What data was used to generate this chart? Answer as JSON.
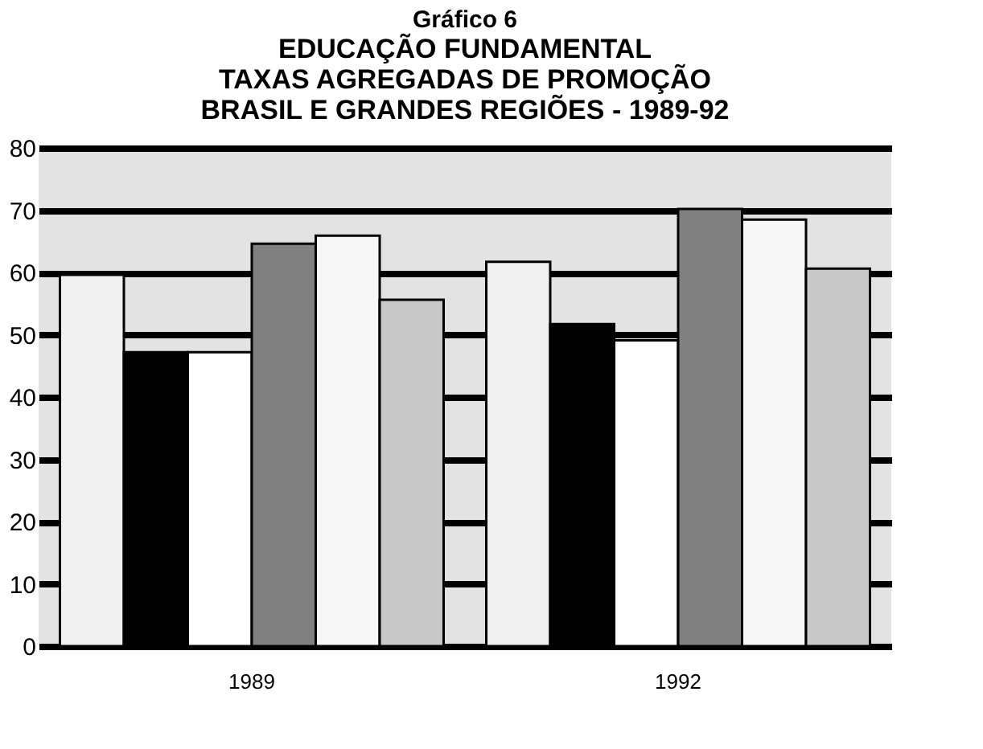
{
  "chart_data": {
    "type": "bar",
    "title": "Gráfico 6",
    "subtitle": [
      "EDUCAÇÃO FUNDAMENTAL",
      "TAXAS AGREGADAS DE PROMOÇÃO",
      "BRASIL E GRANDES REGIÕES - 1989-92"
    ],
    "categories": [
      "1989",
      "1992"
    ],
    "series": [
      {
        "color": "#f0f0f0",
        "values": [
          59.6,
          61.7
        ]
      },
      {
        "color": "#000000",
        "values": [
          47.2,
          51.7
        ]
      },
      {
        "color": "#ffffff",
        "values": [
          47.2,
          49.1
        ]
      },
      {
        "color": "#808080",
        "values": [
          64.6,
          70.2
        ]
      },
      {
        "color": "#f7f7f7",
        "values": [
          65.9,
          68.5
        ]
      },
      {
        "color": "#c8c8c8",
        "values": [
          55.6,
          60.6
        ]
      }
    ],
    "ylim": [
      0,
      80
    ],
    "yticks": [
      0,
      10,
      20,
      30,
      40,
      50,
      60,
      70,
      80
    ],
    "grid": "y",
    "legend": false
  }
}
